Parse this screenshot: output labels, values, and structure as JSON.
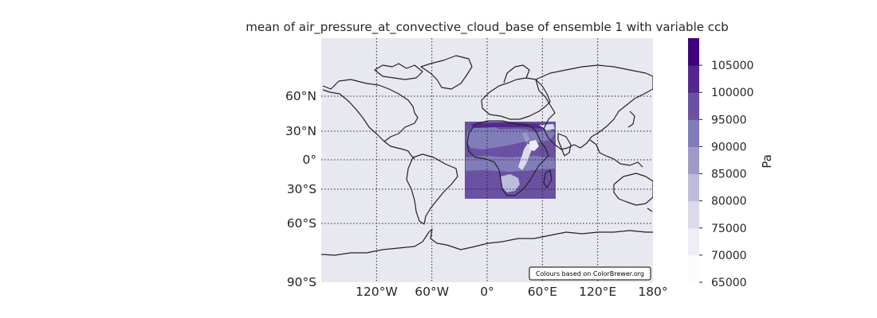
{
  "title": "mean of air_pressure_at_convective_cloud_base of ensemble 1 with variable ccb",
  "map": {
    "projection": "PlateCarree",
    "extent": {
      "lon": [
        -180,
        180
      ],
      "lat": [
        -90,
        90
      ]
    },
    "background_color": "#e8e8f0",
    "gridlines": "dotted",
    "lat_ticks": [
      {
        "value": 60,
        "label": "60°N"
      },
      {
        "value": 30,
        "label": "30°N"
      },
      {
        "value": 0,
        "label": "0°"
      },
      {
        "value": -30,
        "label": "30°S"
      },
      {
        "value": -60,
        "label": "60°S"
      },
      {
        "value": -90,
        "label": "90°S"
      }
    ],
    "lon_ticks": [
      {
        "value": -120,
        "label": "120°W"
      },
      {
        "value": -60,
        "label": "60°W"
      },
      {
        "value": 0,
        "label": "0°"
      },
      {
        "value": 60,
        "label": "60°E"
      },
      {
        "value": 120,
        "label": "120°E"
      },
      {
        "value": 180,
        "label": "180°"
      }
    ],
    "data_region": {
      "lon": [
        -22,
        77
      ],
      "lat": [
        -43,
        40
      ],
      "description": "Africa and surrounding ocean"
    },
    "attribution": "Colours based on ColorBrewer.org"
  },
  "colorbar": {
    "unit": "Pa",
    "colormap": "Purples",
    "levels": [
      65000,
      70000,
      75000,
      80000,
      85000,
      90000,
      95000,
      100000,
      105000
    ],
    "labels": [
      "65000",
      "70000",
      "75000",
      "80000",
      "85000",
      "90000",
      "95000",
      "100000",
      "105000"
    ],
    "colors": [
      "#fcfbfd",
      "#efedf5",
      "#dadaeb",
      "#bcbddc",
      "#9e9ac8",
      "#807dba",
      "#6a51a3",
      "#54278f",
      "#3f007d"
    ]
  }
}
